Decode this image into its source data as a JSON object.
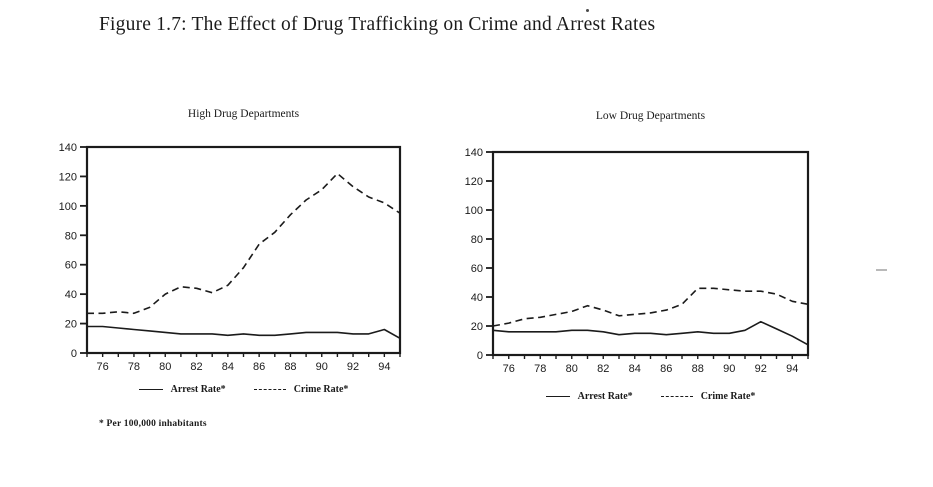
{
  "figure": {
    "title": "Figure 1.7: The Effect of Drug Trafficking on Crime and Arrest Rates",
    "footnote": "* Per 100,000 inhabitants"
  },
  "colors": {
    "ink": "#1b1b1b",
    "background": "#ffffff"
  },
  "chart_data": [
    {
      "id": "high-drug-departments",
      "type": "line",
      "title": "High Drug Departments",
      "xlabel": "",
      "ylabel": "",
      "grid": false,
      "legend_position": "bottom",
      "ylim": [
        0,
        140
      ],
      "yticks": [
        0,
        20,
        40,
        60,
        80,
        100,
        120,
        140
      ],
      "x": [
        75,
        76,
        77,
        78,
        79,
        80,
        81,
        82,
        83,
        84,
        85,
        86,
        87,
        88,
        89,
        90,
        91,
        92,
        93,
        94,
        95
      ],
      "xticks": [
        76,
        78,
        80,
        82,
        84,
        86,
        88,
        90,
        92,
        94
      ],
      "series": [
        {
          "name": "Arrest Rate*",
          "line_style": "solid",
          "values": [
            18,
            18,
            17,
            16,
            15,
            14,
            13,
            13,
            13,
            12,
            13,
            12,
            12,
            13,
            14,
            14,
            14,
            13,
            13,
            16,
            10
          ]
        },
        {
          "name": "Crime Rate*",
          "line_style": "dashed",
          "values": [
            27,
            27,
            28,
            27,
            31,
            40,
            45,
            44,
            41,
            46,
            58,
            74,
            82,
            94,
            104,
            111,
            122,
            113,
            106,
            102,
            95
          ]
        }
      ]
    },
    {
      "id": "low-drug-departments",
      "type": "line",
      "title": "Low Drug Departments",
      "xlabel": "",
      "ylabel": "",
      "grid": false,
      "legend_position": "bottom",
      "ylim": [
        0,
        140
      ],
      "yticks": [
        0,
        20,
        40,
        60,
        80,
        100,
        120,
        140
      ],
      "x": [
        75,
        76,
        77,
        78,
        79,
        80,
        81,
        82,
        83,
        84,
        85,
        86,
        87,
        88,
        89,
        90,
        91,
        92,
        93,
        94,
        95
      ],
      "xticks": [
        76,
        78,
        80,
        82,
        84,
        86,
        88,
        90,
        92,
        94
      ],
      "series": [
        {
          "name": "Arrest Rate*",
          "line_style": "solid",
          "values": [
            17,
            16,
            16,
            16,
            16,
            17,
            17,
            16,
            14,
            15,
            15,
            14,
            15,
            16,
            15,
            15,
            17,
            23,
            18,
            13,
            7
          ]
        },
        {
          "name": "Crime Rate*",
          "line_style": "dashed",
          "values": [
            20,
            22,
            25,
            26,
            28,
            30,
            34,
            31,
            27,
            28,
            29,
            31,
            35,
            46,
            46,
            45,
            44,
            44,
            42,
            37,
            35
          ]
        }
      ]
    }
  ]
}
